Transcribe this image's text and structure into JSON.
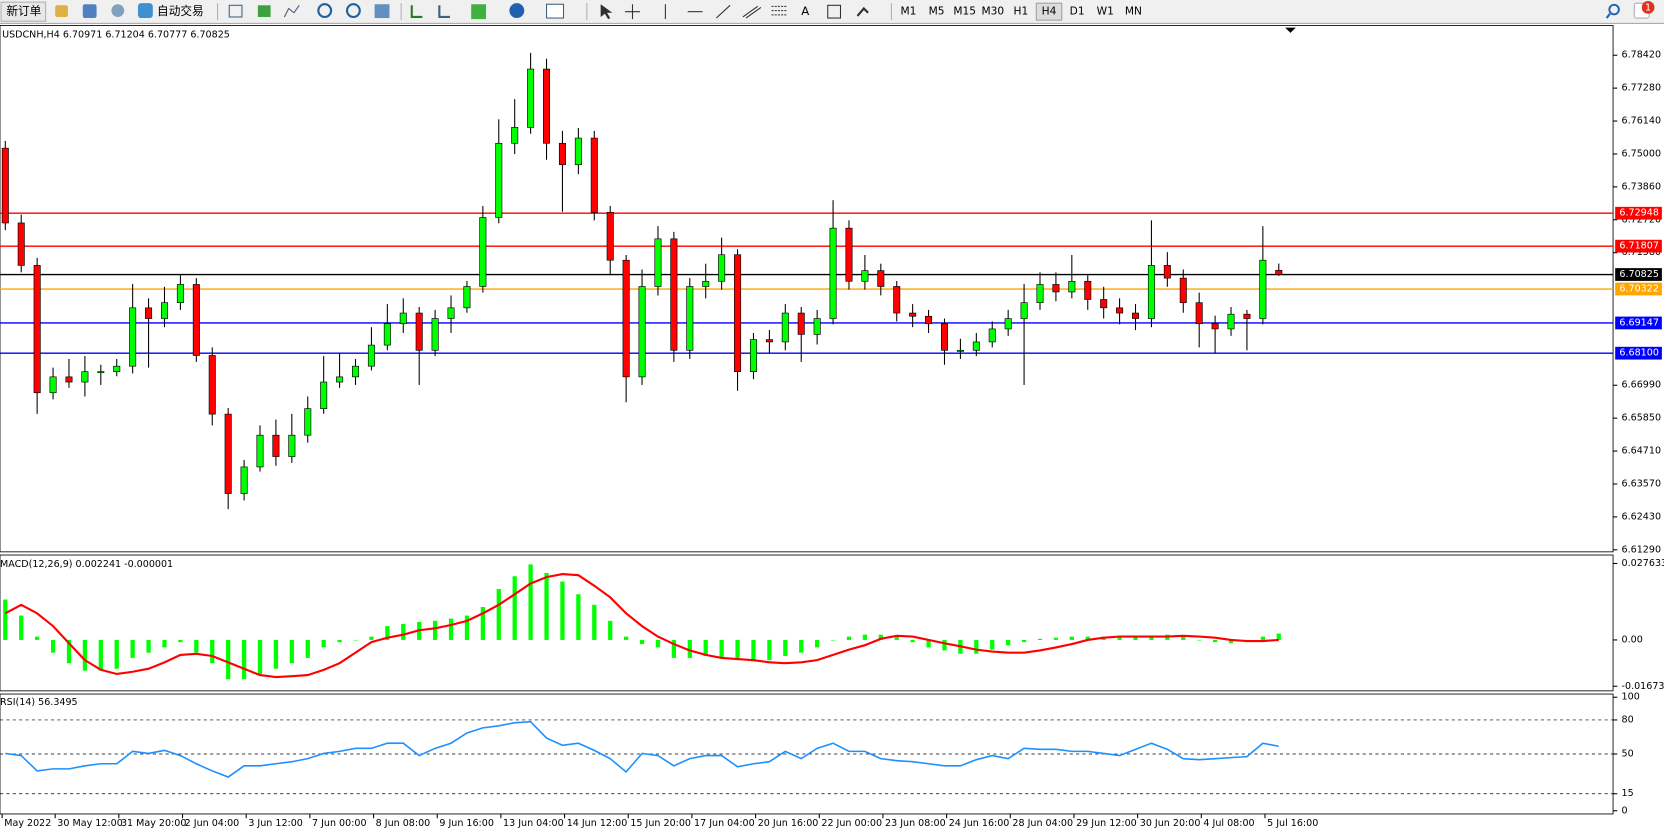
{
  "toolbar": {
    "new_order": "新订单",
    "auto_trading": "自动交易",
    "timeframes": [
      "M1",
      "M5",
      "M15",
      "M30",
      "H1",
      "H4",
      "D1",
      "W1",
      "MN"
    ],
    "active_timeframe": "H4",
    "notifications": "1"
  },
  "chart_data": [
    {
      "type": "candlestick",
      "title": "USDCNH,H4  6.70971 6.71204 6.70777 6.70825",
      "up_color": "#00ff00",
      "down_color": "#ff0000",
      "candles": [
        [
          6.752,
          6.7545,
          6.7236,
          6.7261
        ],
        [
          6.7261,
          6.729,
          6.709,
          6.7114
        ],
        [
          6.7114,
          6.714,
          6.66,
          6.6673
        ],
        [
          6.6673,
          6.676,
          6.665,
          6.6728
        ],
        [
          6.6728,
          6.679,
          6.669,
          6.671
        ],
        [
          6.671,
          6.68,
          6.666,
          6.6746
        ],
        [
          6.6746,
          6.677,
          6.67,
          6.6746
        ],
        [
          6.6746,
          6.679,
          6.673,
          6.6765
        ],
        [
          6.6765,
          6.705,
          6.674,
          6.6967
        ],
        [
          6.6967,
          6.7,
          6.676,
          6.693
        ],
        [
          6.693,
          6.704,
          6.69,
          6.6985
        ],
        [
          6.6985,
          6.708,
          6.696,
          6.7048
        ],
        [
          6.7048,
          6.707,
          6.678,
          6.6802
        ],
        [
          6.6802,
          6.683,
          6.656,
          6.6599
        ],
        [
          6.6599,
          6.662,
          6.627,
          6.6324
        ],
        [
          6.6324,
          6.644,
          6.63,
          6.6416
        ],
        [
          6.6416,
          6.656,
          6.64,
          6.6526
        ],
        [
          6.6526,
          6.658,
          6.642,
          6.6452
        ],
        [
          6.6452,
          6.66,
          6.643,
          6.6526
        ],
        [
          6.6526,
          6.666,
          6.65,
          6.6618
        ],
        [
          6.6618,
          6.68,
          6.66,
          6.671
        ],
        [
          6.671,
          6.681,
          6.669,
          6.6728
        ],
        [
          6.6728,
          6.679,
          6.67,
          6.6765
        ],
        [
          6.6765,
          6.69,
          6.675,
          6.6838
        ],
        [
          6.6838,
          6.698,
          6.682,
          6.6912
        ],
        [
          6.6912,
          6.7,
          6.688,
          6.6949
        ],
        [
          6.6949,
          6.697,
          6.67,
          6.682
        ],
        [
          6.682,
          6.696,
          6.68,
          6.693
        ],
        [
          6.693,
          6.701,
          6.688,
          6.6967
        ],
        [
          6.6967,
          6.706,
          6.695,
          6.7041
        ],
        [
          6.7041,
          6.732,
          6.702,
          6.728
        ],
        [
          6.728,
          6.762,
          6.726,
          6.7537
        ],
        [
          6.7537,
          6.769,
          6.75,
          6.7592
        ],
        [
          6.7592,
          6.785,
          6.757,
          6.7794
        ],
        [
          6.7794,
          6.783,
          6.748,
          6.7537
        ],
        [
          6.7537,
          6.758,
          6.73,
          6.7463
        ],
        [
          6.7463,
          6.759,
          6.743,
          6.7555
        ],
        [
          6.7555,
          6.758,
          6.727,
          6.7298
        ],
        [
          6.7298,
          6.732,
          6.708,
          6.7132
        ],
        [
          6.7132,
          6.715,
          6.664,
          6.6728
        ],
        [
          6.6728,
          6.71,
          6.67,
          6.7041
        ],
        [
          6.7041,
          6.725,
          6.701,
          6.7206
        ],
        [
          6.7206,
          6.723,
          6.678,
          6.682
        ],
        [
          6.682,
          6.707,
          6.679,
          6.7041
        ],
        [
          6.7041,
          6.712,
          6.7,
          6.7059
        ],
        [
          6.7059,
          6.721,
          6.703,
          6.7151
        ],
        [
          6.7151,
          6.717,
          6.668,
          6.6746
        ],
        [
          6.6746,
          6.688,
          6.672,
          6.6857
        ],
        [
          6.6857,
          6.689,
          6.681,
          6.6849
        ],
        [
          6.6849,
          6.698,
          6.682,
          6.6949
        ],
        [
          6.6949,
          6.697,
          6.678,
          6.6875
        ],
        [
          6.6875,
          6.696,
          6.684,
          6.693
        ],
        [
          6.693,
          6.734,
          6.691,
          6.7243
        ],
        [
          6.7243,
          6.727,
          6.703,
          6.7059
        ],
        [
          6.7059,
          6.715,
          6.703,
          6.7096
        ],
        [
          6.7096,
          6.712,
          6.701,
          6.7041
        ],
        [
          6.7041,
          6.706,
          6.692,
          6.6949
        ],
        [
          6.6949,
          6.698,
          6.69,
          6.6938
        ],
        [
          6.6938,
          6.696,
          6.688,
          6.6912
        ],
        [
          6.6912,
          6.693,
          6.677,
          6.682
        ],
        [
          6.682,
          6.686,
          6.679,
          6.682
        ],
        [
          6.682,
          6.688,
          6.68,
          6.6849
        ],
        [
          6.6849,
          6.692,
          6.683,
          6.6894
        ],
        [
          6.6894,
          6.696,
          6.687,
          6.693
        ],
        [
          6.693,
          6.705,
          6.67,
          6.6985
        ],
        [
          6.6985,
          6.709,
          6.696,
          6.7048
        ],
        [
          6.7048,
          6.709,
          6.699,
          6.7022
        ],
        [
          6.7022,
          6.715,
          6.7,
          6.7059
        ],
        [
          6.7059,
          6.708,
          6.696,
          6.6996
        ],
        [
          6.6996,
          6.704,
          6.693,
          6.6967
        ],
        [
          6.6967,
          6.7,
          6.691,
          6.6949
        ],
        [
          6.6949,
          6.698,
          6.689,
          6.693
        ],
        [
          6.693,
          6.727,
          6.69,
          6.7114
        ],
        [
          6.7114,
          6.716,
          6.704,
          6.707
        ],
        [
          6.707,
          6.71,
          6.695,
          6.6985
        ],
        [
          6.6985,
          6.702,
          6.683,
          6.6912
        ],
        [
          6.6912,
          6.694,
          6.681,
          6.6894
        ],
        [
          6.6894,
          6.697,
          6.687,
          6.6945
        ],
        [
          6.6945,
          6.696,
          6.682,
          6.693
        ],
        [
          6.693,
          6.725,
          6.691,
          6.7132
        ],
        [
          6.70971,
          6.71204,
          6.70777,
          6.70825
        ]
      ],
      "ylim": [
        6.6122,
        6.7945
      ],
      "yticks": [
        {
          "value": 6.7842,
          "label": "6.78420"
        },
        {
          "value": 6.7728,
          "label": "6.77280"
        },
        {
          "value": 6.7614,
          "label": "6.76140"
        },
        {
          "value": 6.75,
          "label": "6.75000"
        },
        {
          "value": 6.7386,
          "label": "6.73860"
        },
        {
          "value": 6.7272,
          "label": "6.72720"
        },
        {
          "value": 6.7158,
          "label": "6.71580"
        },
        {
          "value": 6.6699,
          "label": "6.66990"
        },
        {
          "value": 6.6585,
          "label": "6.65850"
        },
        {
          "value": 6.6471,
          "label": "6.64710"
        },
        {
          "value": 6.6357,
          "label": "6.63570"
        },
        {
          "value": 6.6243,
          "label": "6.62430"
        },
        {
          "value": 6.6129,
          "label": "6.61290"
        }
      ],
      "levels": [
        {
          "value": 6.72948,
          "label": "6.72948",
          "color": "#ff0000"
        },
        {
          "value": 6.71807,
          "label": "6.71807",
          "color": "#ff0000"
        },
        {
          "value": 6.70825,
          "label": "6.70825",
          "color": "#000000"
        },
        {
          "value": 6.70322,
          "label": "6.70322",
          "color": "#ffa500"
        },
        {
          "value": 6.69147,
          "label": "6.69147",
          "color": "#0000ff"
        },
        {
          "value": 6.681,
          "label": "6.68100",
          "color": "#0000ff"
        }
      ],
      "x_labels": [
        "May 2022",
        "30 May 12:00",
        "31 May 20:00",
        "2 Jun 04:00",
        "3 Jun 12:00",
        "7 Jun 00:00",
        "8 Jun 08:00",
        "9 Jun 16:00",
        "13 Jun 04:00",
        "14 Jun 12:00",
        "15 Jun 20:00",
        "17 Jun 04:00",
        "20 Jun 16:00",
        "22 Jun 00:00",
        "23 Jun 08:00",
        "24 Jun 16:00",
        "28 Jun 04:00",
        "29 Jun 12:00",
        "30 Jun 20:00",
        "4 Jul 08:00",
        "5 Jul 16:00"
      ]
    },
    {
      "type": "bar",
      "title": "MACD(12,26,9) 0.002241 -0.000001",
      "series": [
        {
          "style": "histogram",
          "color": "#00ff00",
          "values": [
            0.0146,
            0.0088,
            0.0012,
            -0.0046,
            -0.0084,
            -0.0111,
            -0.0111,
            -0.0104,
            -0.0065,
            -0.0046,
            -0.0027,
            -0.0008,
            -0.0046,
            -0.0084,
            -0.0142,
            -0.0142,
            -0.0123,
            -0.0104,
            -0.0084,
            -0.0065,
            -0.0027,
            -0.0008,
            0,
            0.0012,
            0.005,
            0.0058,
            0.0065,
            0.0069,
            0.0077,
            0.0088,
            0.0119,
            0.0184,
            0.023,
            0.0273,
            0.0242,
            0.0211,
            0.0165,
            0.0127,
            0.0069,
            0.0012,
            -0.0015,
            -0.0027,
            -0.0065,
            -0.0065,
            -0.0058,
            -0.0065,
            -0.0073,
            -0.0077,
            -0.0073,
            -0.0058,
            -0.0046,
            -0.0027,
            0,
            0.0012,
            0.0019,
            0.0019,
            0.0012,
            -0.0008,
            -0.0027,
            -0.0038,
            -0.005,
            -0.005,
            -0.0035,
            -0.0019,
            -0.0008,
            0.0004,
            0.0008,
            0.0012,
            0.0012,
            0.0012,
            0.0012,
            0.0012,
            0.0015,
            0.0019,
            0.0012,
            0,
            -0.0008,
            -0.0012,
            -0.0008,
            0.0012,
            0.0023
          ]
        },
        {
          "style": "line",
          "color": "#ff0000",
          "values": [
            0.0096,
            0.0127,
            0.0096,
            0.005,
            -0.0012,
            -0.0073,
            -0.0108,
            -0.0123,
            -0.0115,
            -0.0104,
            -0.0081,
            -0.0054,
            -0.005,
            -0.0058,
            -0.0081,
            -0.0104,
            -0.0127,
            -0.0134,
            -0.0131,
            -0.0127,
            -0.0108,
            -0.0084,
            -0.0046,
            -0.0008,
            0.0008,
            0.0019,
            0.0035,
            0.0042,
            0.0054,
            0.0069,
            0.0096,
            0.0127,
            0.0165,
            0.0204,
            0.0227,
            0.0238,
            0.0234,
            0.0196,
            0.0154,
            0.0096,
            0.005,
            0.0012,
            -0.0015,
            -0.0038,
            -0.0054,
            -0.0065,
            -0.0069,
            -0.0073,
            -0.0081,
            -0.0084,
            -0.0081,
            -0.0073,
            -0.0054,
            -0.0035,
            -0.0019,
            0.0004,
            0.0015,
            0.0012,
            0,
            -0.0012,
            -0.0023,
            -0.0035,
            -0.0042,
            -0.0046,
            -0.0046,
            -0.0038,
            -0.0027,
            -0.0015,
            0,
            0.0008,
            0.0012,
            0.0012,
            0.0012,
            0.0012,
            0.0015,
            0.0012,
            0.0008,
            0,
            -0.0004,
            -0.0004,
            0
          ]
        }
      ],
      "ylim": [
        -0.0184,
        0.0303
      ],
      "yticks": [
        0.027633,
        {
          "value": 0,
          "label": "0.00"
        },
        -0.016736
      ]
    },
    {
      "type": "line",
      "title": "RSI(14) 56.3495",
      "color": "#1e90ff",
      "values": [
        50.5,
        48.6,
        35.1,
        36.9,
        36.9,
        39.6,
        41.4,
        41.4,
        52.3,
        50.5,
        53.2,
        48.6,
        41.4,
        35.1,
        29.7,
        39.6,
        39.6,
        41.4,
        43.2,
        45.9,
        50.5,
        52.3,
        55.0,
        55.0,
        59.5,
        59.5,
        48.6,
        55.0,
        59.5,
        68.5,
        73.0,
        74.8,
        77.5,
        78.4,
        64.0,
        57.7,
        59.5,
        53.2,
        45.9,
        34.2,
        50.5,
        48.6,
        39.6,
        45.9,
        48.6,
        48.6,
        38.7,
        41.4,
        43.2,
        52.3,
        45.9,
        55.0,
        59.5,
        52.3,
        52.3,
        45.9,
        44.1,
        43.2,
        41.4,
        39.6,
        39.6,
        45.0,
        48.6,
        45.9,
        55.0,
        54.1,
        54.1,
        52.3,
        52.3,
        50.5,
        48.6,
        54.1,
        59.5,
        54.1,
        45.9,
        45.0,
        45.9,
        46.8,
        47.7,
        59.5,
        56.8
      ],
      "ylim": [
        0,
        100
      ],
      "yticks": [
        100,
        80,
        50,
        15,
        0
      ]
    }
  ]
}
